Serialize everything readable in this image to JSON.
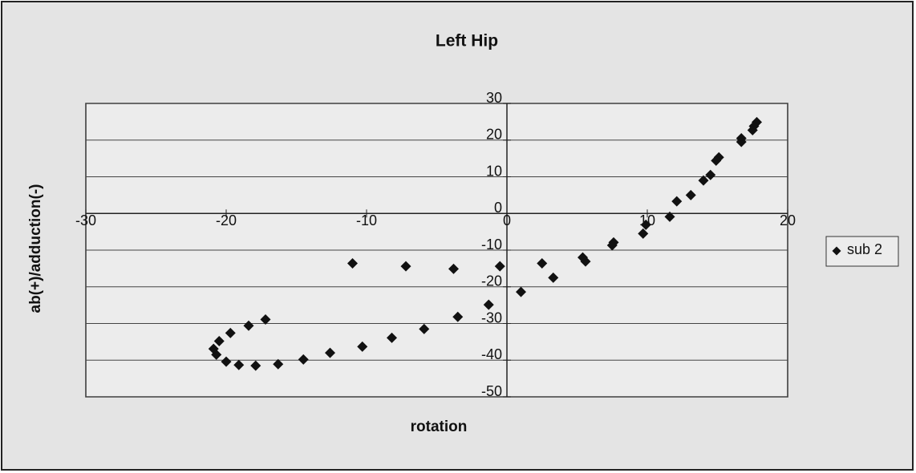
{
  "chart_data": {
    "type": "scatter",
    "title": "Left Hip",
    "x_label": "rotation",
    "y_label": "ab(+)/adduction(-)",
    "xlim": [
      -30,
      20
    ],
    "ylim": [
      -50,
      30
    ],
    "xticks": [
      -30,
      -20,
      -10,
      0,
      10,
      20
    ],
    "yticks": [
      -50,
      -40,
      -30,
      -20,
      -10,
      0,
      10,
      20,
      30
    ],
    "grid": true,
    "legend": "right",
    "series": [
      {
        "name": "sub 2",
        "color": "#111111",
        "x": [
          17.8,
          17.6,
          17.5,
          16.7,
          16.7,
          15.1,
          14.9,
          14.5,
          14.0,
          13.1,
          12.1,
          11.6,
          9.9,
          9.7,
          7.6,
          7.5,
          5.6,
          5.4,
          3.3,
          2.5,
          1.0,
          -0.5,
          -1.3,
          -3.5,
          -3.8,
          -5.9,
          -7.2,
          -8.2,
          -10.3,
          -11.0,
          -12.6,
          -14.5,
          -16.3,
          -17.2,
          -17.9,
          -18.4,
          -19.1,
          -19.7,
          -20.0,
          -20.5,
          -20.7,
          -20.9
        ],
        "y": [
          24.9,
          23.8,
          22.7,
          20.5,
          19.5,
          15.3,
          14.4,
          10.5,
          9.0,
          5.0,
          3.3,
          -0.9,
          -3.1,
          -5.5,
          -7.9,
          -8.7,
          -13.1,
          -12.0,
          -17.5,
          -13.6,
          -21.4,
          -14.4,
          -24.9,
          -28.2,
          -15.1,
          -31.5,
          -14.4,
          -33.9,
          -36.3,
          -13.6,
          -38.0,
          -39.8,
          -41.1,
          -28.9,
          -41.5,
          -30.6,
          -41.3,
          -32.6,
          -40.4,
          -34.8,
          -38.5,
          -36.9
        ]
      }
    ]
  }
}
